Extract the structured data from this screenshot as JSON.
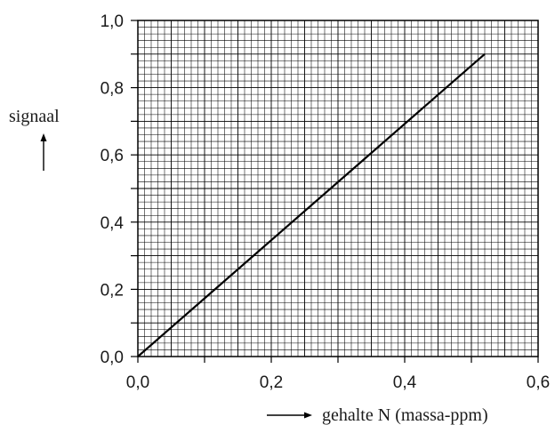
{
  "chart_data": {
    "type": "line",
    "title": "",
    "xlabel": "gehalte N (massa-ppm)",
    "ylabel": "signaal",
    "xlim": [
      0,
      0.6
    ],
    "ylim": [
      0,
      1.0
    ],
    "x_ticks": [
      "0,0",
      "0,2",
      "0,4",
      "0,6"
    ],
    "y_ticks": [
      "0,0",
      "0,2",
      "0,4",
      "0,6",
      "0,8",
      "1,0"
    ],
    "grid": true,
    "grid_minor_step_x": 0.01,
    "grid_minor_step_y": 0.02,
    "series": [
      {
        "x": [
          0,
          0.52
        ],
        "y": [
          0,
          0.9
        ]
      }
    ]
  }
}
